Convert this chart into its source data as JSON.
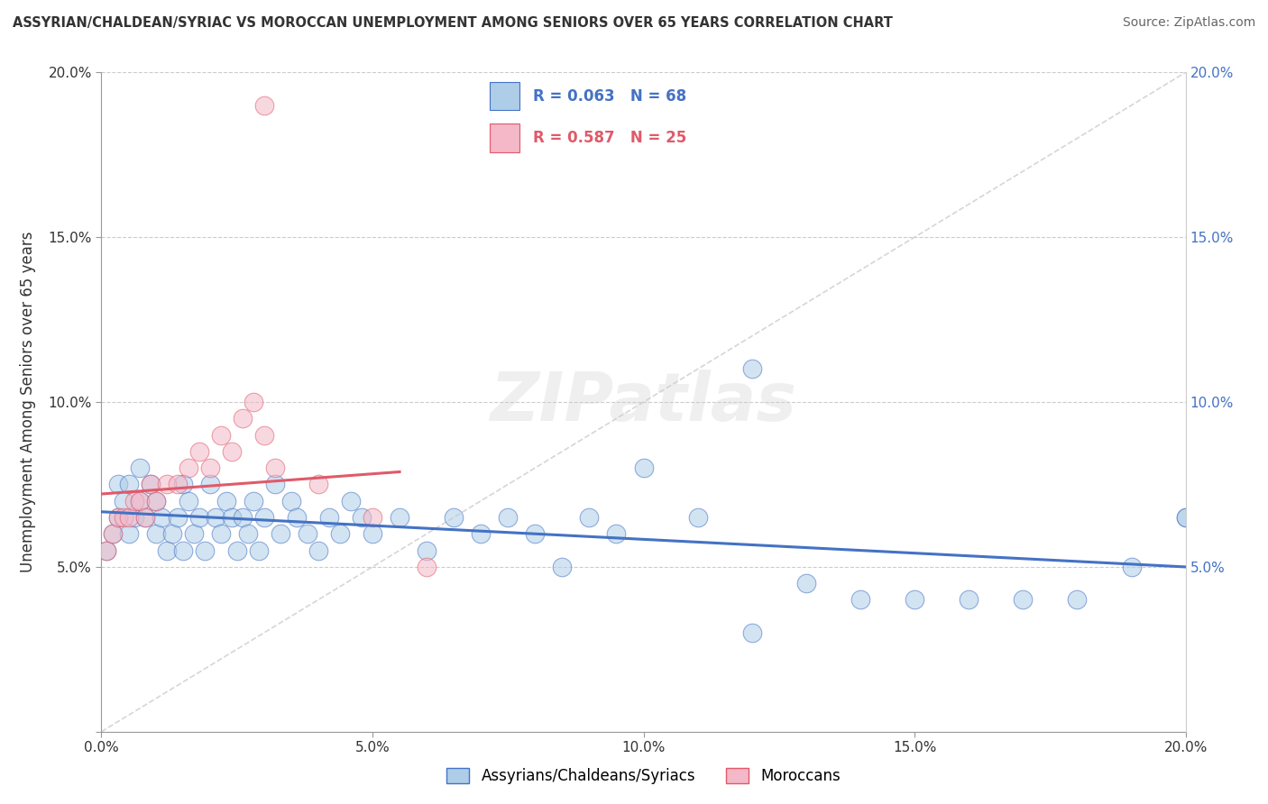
{
  "title": "ASSYRIAN/CHALDEAN/SYRIAC VS MOROCCAN UNEMPLOYMENT AMONG SENIORS OVER 65 YEARS CORRELATION CHART",
  "source": "Source: ZipAtlas.com",
  "ylabel": "Unemployment Among Seniors over 65 years",
  "legend_label1": "Assyrians/Chaldeans/Syriacs",
  "legend_label2": "Moroccans",
  "R1": 0.063,
  "N1": 68,
  "R2": 0.587,
  "N2": 25,
  "color1": "#aecde8",
  "color2": "#f4b8c8",
  "trendline1_color": "#4472c4",
  "trendline2_color": "#e05a6a",
  "xlim": [
    0.0,
    0.2
  ],
  "ylim": [
    0.0,
    0.2
  ],
  "xticks": [
    0.0,
    0.05,
    0.1,
    0.15,
    0.2
  ],
  "yticks": [
    0.0,
    0.05,
    0.1,
    0.15,
    0.2
  ],
  "xticklabels": [
    "0.0%",
    "5.0%",
    "10.0%",
    "15.0%",
    "20.0%"
  ],
  "left_yticklabels": [
    "",
    "5.0%",
    "10.0%",
    "15.0%",
    "20.0%"
  ],
  "right_yticklabels": [
    "",
    "5.0%",
    "10.0%",
    "15.0%",
    "20.0%"
  ],
  "assyrians_x": [
    0.001,
    0.002,
    0.003,
    0.003,
    0.004,
    0.005,
    0.005,
    0.006,
    0.007,
    0.007,
    0.008,
    0.009,
    0.01,
    0.01,
    0.011,
    0.012,
    0.013,
    0.014,
    0.015,
    0.015,
    0.016,
    0.017,
    0.018,
    0.019,
    0.02,
    0.021,
    0.022,
    0.023,
    0.024,
    0.025,
    0.026,
    0.027,
    0.028,
    0.029,
    0.03,
    0.032,
    0.033,
    0.035,
    0.036,
    0.038,
    0.04,
    0.042,
    0.044,
    0.046,
    0.048,
    0.05,
    0.055,
    0.06,
    0.065,
    0.07,
    0.075,
    0.08,
    0.085,
    0.09,
    0.095,
    0.1,
    0.11,
    0.12,
    0.13,
    0.14,
    0.15,
    0.16,
    0.17,
    0.18,
    0.19,
    0.2,
    0.12,
    0.2
  ],
  "assyrians_y": [
    0.055,
    0.06,
    0.065,
    0.075,
    0.07,
    0.06,
    0.075,
    0.065,
    0.07,
    0.08,
    0.065,
    0.075,
    0.06,
    0.07,
    0.065,
    0.055,
    0.06,
    0.065,
    0.075,
    0.055,
    0.07,
    0.06,
    0.065,
    0.055,
    0.075,
    0.065,
    0.06,
    0.07,
    0.065,
    0.055,
    0.065,
    0.06,
    0.07,
    0.055,
    0.065,
    0.075,
    0.06,
    0.07,
    0.065,
    0.06,
    0.055,
    0.065,
    0.06,
    0.07,
    0.065,
    0.06,
    0.065,
    0.055,
    0.065,
    0.06,
    0.065,
    0.06,
    0.05,
    0.065,
    0.06,
    0.08,
    0.065,
    0.03,
    0.045,
    0.04,
    0.04,
    0.04,
    0.04,
    0.04,
    0.05,
    0.065,
    0.11,
    0.065
  ],
  "moroccans_x": [
    0.001,
    0.002,
    0.003,
    0.004,
    0.005,
    0.006,
    0.007,
    0.008,
    0.009,
    0.01,
    0.012,
    0.014,
    0.016,
    0.018,
    0.02,
    0.022,
    0.024,
    0.026,
    0.028,
    0.03,
    0.032,
    0.04,
    0.05,
    0.06,
    0.03
  ],
  "moroccans_y": [
    0.055,
    0.06,
    0.065,
    0.065,
    0.065,
    0.07,
    0.07,
    0.065,
    0.075,
    0.07,
    0.075,
    0.075,
    0.08,
    0.085,
    0.08,
    0.09,
    0.085,
    0.095,
    0.1,
    0.09,
    0.08,
    0.075,
    0.065,
    0.05,
    0.19
  ],
  "watermark": "ZIPatlas",
  "background_color": "#ffffff",
  "grid_color": "#cccccc"
}
